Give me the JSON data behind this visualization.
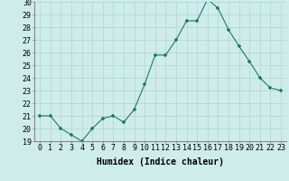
{
  "x": [
    0,
    1,
    2,
    3,
    4,
    5,
    6,
    7,
    8,
    9,
    10,
    11,
    12,
    13,
    14,
    15,
    16,
    17,
    18,
    19,
    20,
    21,
    22,
    23
  ],
  "y": [
    21,
    21,
    20,
    19.5,
    19,
    20,
    20.8,
    21,
    20.5,
    21.5,
    23.5,
    25.8,
    25.8,
    27,
    28.5,
    28.5,
    30.2,
    29.5,
    27.8,
    26.5,
    25.3,
    24,
    23.2,
    23
  ],
  "xlabel": "Humidex (Indice chaleur)",
  "ylim": [
    19,
    30
  ],
  "yticks": [
    19,
    20,
    21,
    22,
    23,
    24,
    25,
    26,
    27,
    28,
    29,
    30
  ],
  "xticks": [
    0,
    1,
    2,
    3,
    4,
    5,
    6,
    7,
    8,
    9,
    10,
    11,
    12,
    13,
    14,
    15,
    16,
    17,
    18,
    19,
    20,
    21,
    22,
    23
  ],
  "line_color": "#1a7a6e",
  "bg_color": "#ceecea",
  "grid_color": "#b0d4d0",
  "xlabel_fontsize": 7,
  "tick_fontsize": 6
}
